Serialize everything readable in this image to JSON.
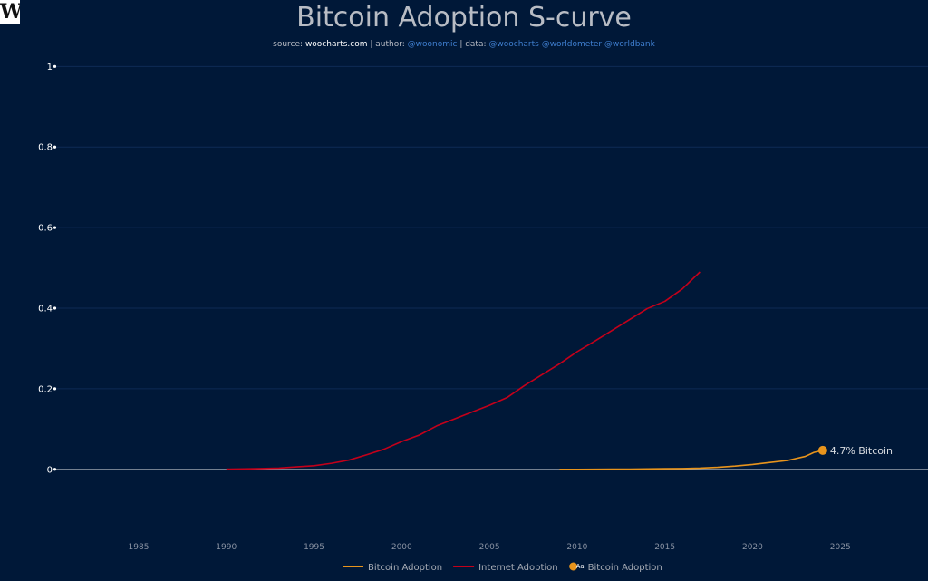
{
  "logo": {
    "letter": "W"
  },
  "header": {
    "title": "Bitcoin Adoption S-curve",
    "subtitle": {
      "source_prefix": "source: ",
      "source": "woocharts.com",
      "author_prefix": " | author: ",
      "author": "@woonomic",
      "data_prefix": " | data: ",
      "data_sources": "@woocharts @worldometer @worldbank"
    }
  },
  "colors": {
    "background": "#001838",
    "bitcoin": "#e8941c",
    "internet": "#c4001a",
    "grid": "#0e2a55",
    "zero_line": "#9aa3ae"
  },
  "chart_data": {
    "type": "line",
    "title": "Bitcoin Adoption S-curve",
    "xlabel": "",
    "ylabel": "",
    "xlim": [
      1980.3,
      2030
    ],
    "ylim": [
      -0.14,
      1.03
    ],
    "grid": true,
    "legend_position": "bottom-center",
    "x_ticks": [
      1985,
      1990,
      1995,
      2000,
      2005,
      2010,
      2015,
      2020,
      2025
    ],
    "y_ticks": [
      0,
      0.2,
      0.4,
      0.6,
      0.8,
      1
    ],
    "y_tick_labels": [
      "0",
      "0.2",
      "0.4",
      "0.6",
      "0.8",
      "1"
    ],
    "series": [
      {
        "name": "Internet Adoption",
        "color": "#c4001a",
        "x": [
          1990,
          1991,
          1992,
          1993,
          1994,
          1995,
          1996,
          1997,
          1998,
          1999,
          2000,
          2001,
          2002,
          2003,
          2004,
          2005,
          2006,
          2007,
          2008,
          2009,
          2010,
          2011,
          2012,
          2013,
          2014,
          2015,
          2016,
          2017
        ],
        "y": [
          0.0005,
          0.001,
          0.002,
          0.003,
          0.006,
          0.009,
          0.015,
          0.023,
          0.036,
          0.05,
          0.069,
          0.085,
          0.108,
          0.125,
          0.142,
          0.159,
          0.178,
          0.208,
          0.235,
          0.262,
          0.292,
          0.318,
          0.345,
          0.372,
          0.399,
          0.417,
          0.448,
          0.49
        ]
      },
      {
        "name": "Bitcoin Adoption",
        "color": "#e8941c",
        "x": [
          2009,
          2010,
          2011,
          2012,
          2013,
          2014,
          2015,
          2016,
          2017,
          2018,
          2019,
          2020,
          2021,
          2022,
          2023,
          2023.5,
          2024
        ],
        "y": [
          0,
          0,
          0.0002,
          0.0004,
          0.0006,
          0.001,
          0.0015,
          0.002,
          0.003,
          0.005,
          0.008,
          0.012,
          0.017,
          0.022,
          0.032,
          0.042,
          0.047
        ]
      }
    ],
    "annotation": {
      "x": 2024,
      "y": 0.047,
      "label": "4.7% Bitcoin"
    },
    "legend": [
      {
        "name": "Bitcoin Adoption",
        "marker": "line",
        "color": "#e8941c"
      },
      {
        "name": "Internet Adoption",
        "marker": "line",
        "color": "#c4001a"
      },
      {
        "name": "Bitcoin Adoption",
        "marker": "dot",
        "color": "#e8941c",
        "glyph": "Aa"
      }
    ]
  }
}
